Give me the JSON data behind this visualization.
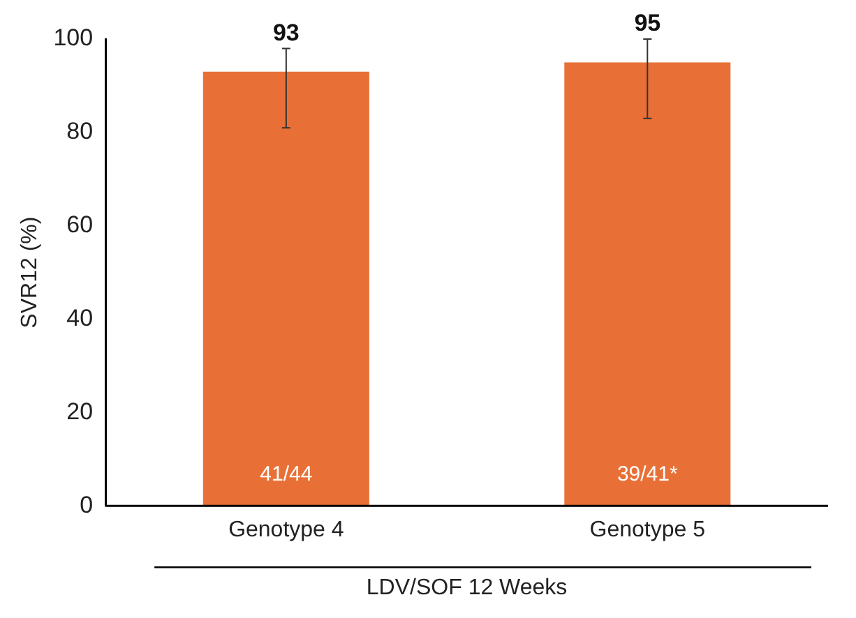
{
  "chart_data": {
    "type": "bar",
    "categories": [
      "Genotype 4",
      "Genotype 5"
    ],
    "values": [
      93,
      95
    ],
    "color": "#e87036",
    "errors": [
      [
        81,
        98
      ],
      [
        83,
        100
      ]
    ],
    "data_labels": true,
    "ylabel": "SVR12 (%)",
    "xlabel": "LDV/SOF 12 Weeks",
    "ylim": [
      0,
      100
    ],
    "yticks": [
      0,
      20,
      40,
      60,
      80,
      100
    ],
    "grid": false,
    "legend": false,
    "annotations": [
      "41/44",
      "39/41*"
    ]
  }
}
